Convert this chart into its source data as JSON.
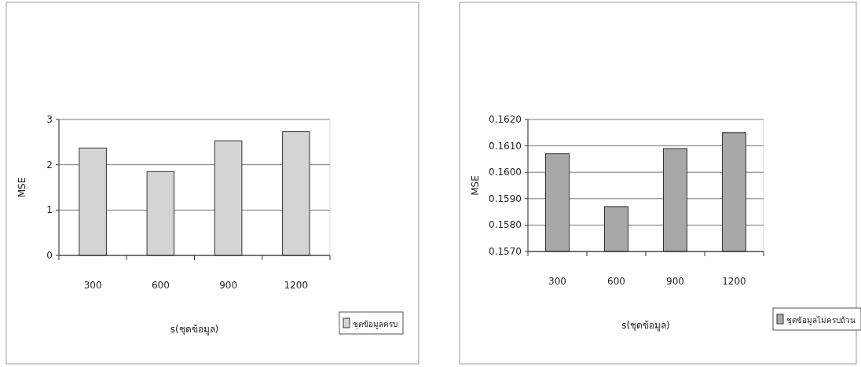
{
  "chart_data": [
    {
      "type": "bar",
      "xlabel": "s(ชุดข้อมูล)",
      "ylabel": "MSE",
      "categories": [
        "300",
        "600",
        "900",
        "1200"
      ],
      "series": [
        {
          "name": "ชุดข้อมูลครบ",
          "color": "#d4d4d4",
          "values": [
            2.37,
            1.85,
            2.53,
            2.73
          ]
        }
      ],
      "ylim": [
        0,
        3
      ],
      "yticks": [
        0,
        1,
        2,
        3
      ],
      "grid": "y",
      "legend": "right"
    },
    {
      "type": "bar",
      "xlabel": "s(ชุดข้อมูล)",
      "ylabel": "MSE",
      "categories": [
        "300",
        "600",
        "900",
        "1200"
      ],
      "series": [
        {
          "name": "ชุดข้อมูลไม่ครบถ้วน",
          "color": "#a8a8a8",
          "values": [
            0.1607,
            0.1587,
            0.1609,
            0.1615
          ]
        }
      ],
      "ylim": [
        0.157,
        0.162
      ],
      "yticks": [
        {
          "value": 0.157,
          "label": "0.1570"
        },
        {
          "value": 0.158,
          "label": "0.1580"
        },
        {
          "value": 0.159,
          "label": "0.1590"
        },
        {
          "value": 0.16,
          "label": "0.1600"
        },
        {
          "value": 0.161,
          "label": "0.1610"
        },
        {
          "value": 0.162,
          "label": "0.1620"
        }
      ],
      "grid": "y",
      "legend": "right"
    }
  ]
}
